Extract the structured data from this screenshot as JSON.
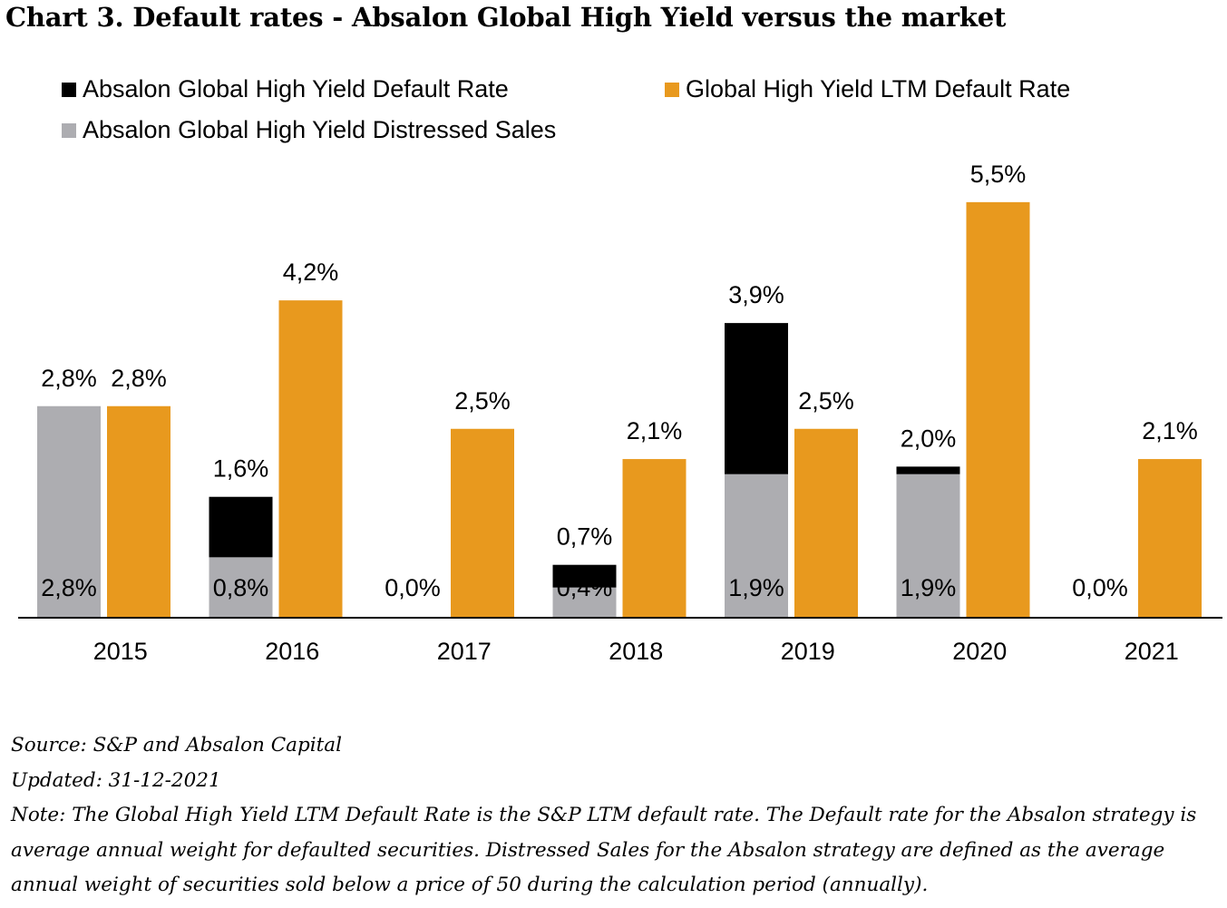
{
  "chart_data": {
    "type": "bar",
    "title": "Chart 3. Default rates - Absalon Global High Yield versus the market",
    "categories": [
      "2015",
      "2016",
      "2017",
      "2018",
      "2019",
      "2020",
      "2021"
    ],
    "series": [
      {
        "name": "Absalon Global High Yield Distressed Sales",
        "color": "#adadb1",
        "values": [
          2.8,
          0.8,
          0.0,
          0.4,
          1.9,
          1.9,
          0.0
        ],
        "labels": [
          "2,8%",
          "0,8%",
          "0,0%",
          "0,4%",
          "1,9%",
          "1,9%",
          "0,0%"
        ]
      },
      {
        "name": "Absalon Global High Yield Default Rate",
        "color": "#000000",
        "values": [
          0.0,
          0.8,
          0.0,
          0.3,
          2.0,
          0.1,
          0.0
        ],
        "labels": [
          "2,8%",
          "1,6%",
          "",
          "0,7%",
          "3,9%",
          "2,0%",
          ""
        ]
      },
      {
        "name": "Global High Yield LTM Default Rate",
        "color": "#e8991e",
        "values": [
          2.8,
          4.2,
          2.5,
          2.1,
          2.5,
          5.5,
          2.1
        ],
        "labels": [
          "2,8%",
          "4,2%",
          "2,5%",
          "2,1%",
          "2,5%",
          "5,5%",
          "2,1%"
        ]
      }
    ],
    "stacked_absalon": true,
    "legend": [
      "Absalon Global High Yield Default Rate",
      "Global High Yield LTM Default Rate",
      "Absalon Global High Yield Distressed Sales"
    ],
    "legend_position": "top",
    "grid": false,
    "ylim": [
      0,
      6
    ]
  },
  "notes": {
    "source": "Source: S&P and Absalon Capital",
    "updated": "Updated: 31-12-2021",
    "note": "Note: The Global High Yield LTM Default Rate is the S&P LTM default rate. The Default rate for the Absalon strategy is average annual weight for defaulted securities. Distressed Sales for the Absalon strategy are defined as the average annual weight of securities sold below a price of 50 during the calculation period (annually)."
  }
}
